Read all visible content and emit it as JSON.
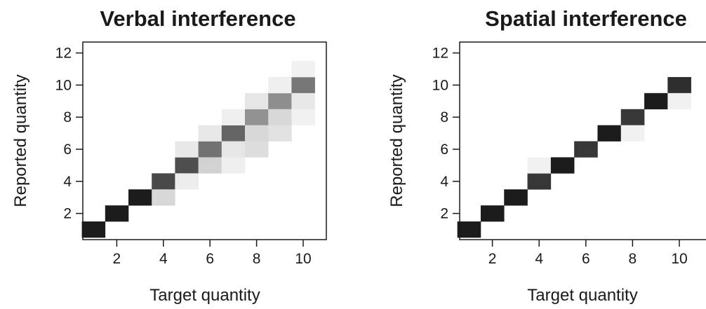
{
  "chart_data": [
    {
      "type": "heatmap",
      "title": "Verbal interference",
      "xlabel": "Target quantity",
      "ylabel": "Reported quantity",
      "xlim": [
        0.5,
        10.5
      ],
      "ylim": [
        0.5,
        12.5
      ],
      "xticks": [
        2,
        4,
        6,
        8,
        10
      ],
      "yticks": [
        2,
        4,
        6,
        8,
        10,
        12
      ],
      "grid": false,
      "value_scale": "proportion of responses (0 = white, 1 = black)",
      "cells": [
        {
          "x": 1,
          "y": 1,
          "v": 1.0
        },
        {
          "x": 2,
          "y": 2,
          "v": 1.0
        },
        {
          "x": 3,
          "y": 3,
          "v": 1.0
        },
        {
          "x": 4,
          "y": 4,
          "v": 0.8
        },
        {
          "x": 4,
          "y": 3,
          "v": 0.17
        },
        {
          "x": 5,
          "y": 5,
          "v": 0.78
        },
        {
          "x": 5,
          "y": 6,
          "v": 0.1
        },
        {
          "x": 5,
          "y": 4,
          "v": 0.08
        },
        {
          "x": 6,
          "y": 6,
          "v": 0.62
        },
        {
          "x": 6,
          "y": 7,
          "v": 0.1
        },
        {
          "x": 6,
          "y": 5,
          "v": 0.2
        },
        {
          "x": 7,
          "y": 7,
          "v": 0.68
        },
        {
          "x": 7,
          "y": 8,
          "v": 0.07
        },
        {
          "x": 7,
          "y": 6,
          "v": 0.11
        },
        {
          "x": 7,
          "y": 5,
          "v": 0.07
        },
        {
          "x": 8,
          "y": 8,
          "v": 0.48
        },
        {
          "x": 8,
          "y": 9,
          "v": 0.11
        },
        {
          "x": 8,
          "y": 7,
          "v": 0.17
        },
        {
          "x": 8,
          "y": 6,
          "v": 0.15
        },
        {
          "x": 9,
          "y": 9,
          "v": 0.5
        },
        {
          "x": 9,
          "y": 10,
          "v": 0.07
        },
        {
          "x": 9,
          "y": 8,
          "v": 0.17
        },
        {
          "x": 9,
          "y": 7,
          "v": 0.13
        },
        {
          "x": 10,
          "y": 10,
          "v": 0.6
        },
        {
          "x": 10,
          "y": 11,
          "v": 0.06
        },
        {
          "x": 10,
          "y": 9,
          "v": 0.1
        },
        {
          "x": 10,
          "y": 8,
          "v": 0.06
        }
      ]
    },
    {
      "type": "heatmap",
      "title": "Spatial interference",
      "xlabel": "Target quantity",
      "ylabel": "Reported quantity",
      "xlim": [
        0.5,
        10.5
      ],
      "ylim": [
        0.5,
        12.5
      ],
      "xticks": [
        2,
        4,
        6,
        8,
        10
      ],
      "yticks": [
        2,
        4,
        6,
        8,
        10,
        12
      ],
      "grid": false,
      "value_scale": "proportion of responses (0 = white, 1 = black)",
      "cells": [
        {
          "x": 1,
          "y": 1,
          "v": 1.0
        },
        {
          "x": 2,
          "y": 2,
          "v": 1.0
        },
        {
          "x": 3,
          "y": 3,
          "v": 1.0
        },
        {
          "x": 4,
          "y": 4,
          "v": 0.88
        },
        {
          "x": 4,
          "y": 5,
          "v": 0.06
        },
        {
          "x": 5,
          "y": 5,
          "v": 1.0
        },
        {
          "x": 6,
          "y": 6,
          "v": 0.88
        },
        {
          "x": 7,
          "y": 7,
          "v": 1.0
        },
        {
          "x": 8,
          "y": 8,
          "v": 0.88
        },
        {
          "x": 8,
          "y": 7,
          "v": 0.06
        },
        {
          "x": 9,
          "y": 9,
          "v": 1.0
        },
        {
          "x": 10,
          "y": 10,
          "v": 0.92
        },
        {
          "x": 10,
          "y": 9,
          "v": 0.06
        }
      ]
    }
  ]
}
